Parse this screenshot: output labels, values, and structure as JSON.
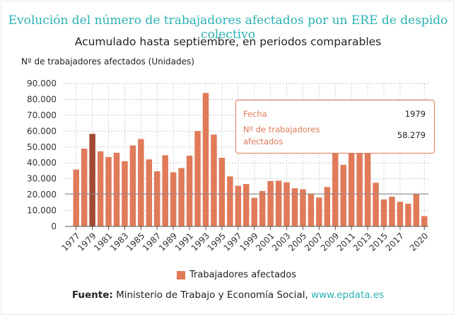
{
  "colors": {
    "bar": "#e07a59",
    "bar_highlight": "#a14b33",
    "accent": "#2bb1b3"
  },
  "chart_data": {
    "type": "bar",
    "title": "Evolución del número de trabajadores afectados por un ERE de despido colectivo",
    "subtitle": "Acumulado hasta septiembre, en periodos comparables",
    "ylabel": "Nº de trabajadores afectados (Unidades)",
    "ylim": [
      0,
      90000
    ],
    "yticks": [
      0,
      10000,
      20000,
      30000,
      40000,
      50000,
      60000,
      70000,
      80000,
      90000
    ],
    "ytick_labels": [
      "0",
      "10.000",
      "20.000",
      "30.000",
      "40.000",
      "50.000",
      "60.000",
      "70.000",
      "80.000",
      "90.000"
    ],
    "categories": [
      "1977",
      "1978",
      "1979",
      "1980",
      "1981",
      "1982",
      "1983",
      "1984",
      "1985",
      "1986",
      "1987",
      "1988",
      "1989",
      "1990",
      "1991",
      "1992",
      "1993",
      "1994",
      "1995",
      "1996",
      "1997",
      "1998",
      "1999",
      "2000",
      "2001",
      "2002",
      "2003",
      "2004",
      "2005",
      "2006",
      "2007",
      "2008",
      "2009",
      "2010",
      "2011",
      "2012",
      "2013",
      "2014",
      "2015",
      "2016",
      "2017",
      "2018",
      "2019",
      "2020"
    ],
    "xtick_labels": [
      "1977",
      "1979",
      "1981",
      "1983",
      "1985",
      "1987",
      "1989",
      "1991",
      "1993",
      "1995",
      "1997",
      "1999",
      "2001",
      "2003",
      "2005",
      "2007",
      "2009",
      "2011",
      "2013",
      "2015",
      "2017",
      "2020"
    ],
    "series": [
      {
        "name": "Trabajadores afectados",
        "values": [
          35800,
          49000,
          58279,
          47300,
          43700,
          46400,
          41000,
          51000,
          55000,
          42200,
          34700,
          44800,
          34100,
          36800,
          44500,
          60100,
          84000,
          57800,
          43200,
          31500,
          25600,
          26700,
          18000,
          22300,
          28600,
          28800,
          27800,
          24000,
          23400,
          20600,
          18200,
          24800,
          46500,
          38800,
          48000,
          52000,
          46500,
          27500,
          17000,
          18700,
          15500,
          14300,
          20500,
          6500
        ]
      }
    ],
    "highlight_index": 2,
    "reference_line": 20500,
    "grid": true,
    "legend_position": "bottom"
  },
  "tooltip": {
    "key1": "Fecha",
    "val1": "1979",
    "key2": "Nº de trabajadores afectados",
    "val2": "58.279"
  },
  "legend": {
    "label": "Trabajadores afectados"
  },
  "source": {
    "label": "Fuente:",
    "text": "Ministerio de Trabajo y Economía Social,",
    "link": "www.epdata.es"
  }
}
